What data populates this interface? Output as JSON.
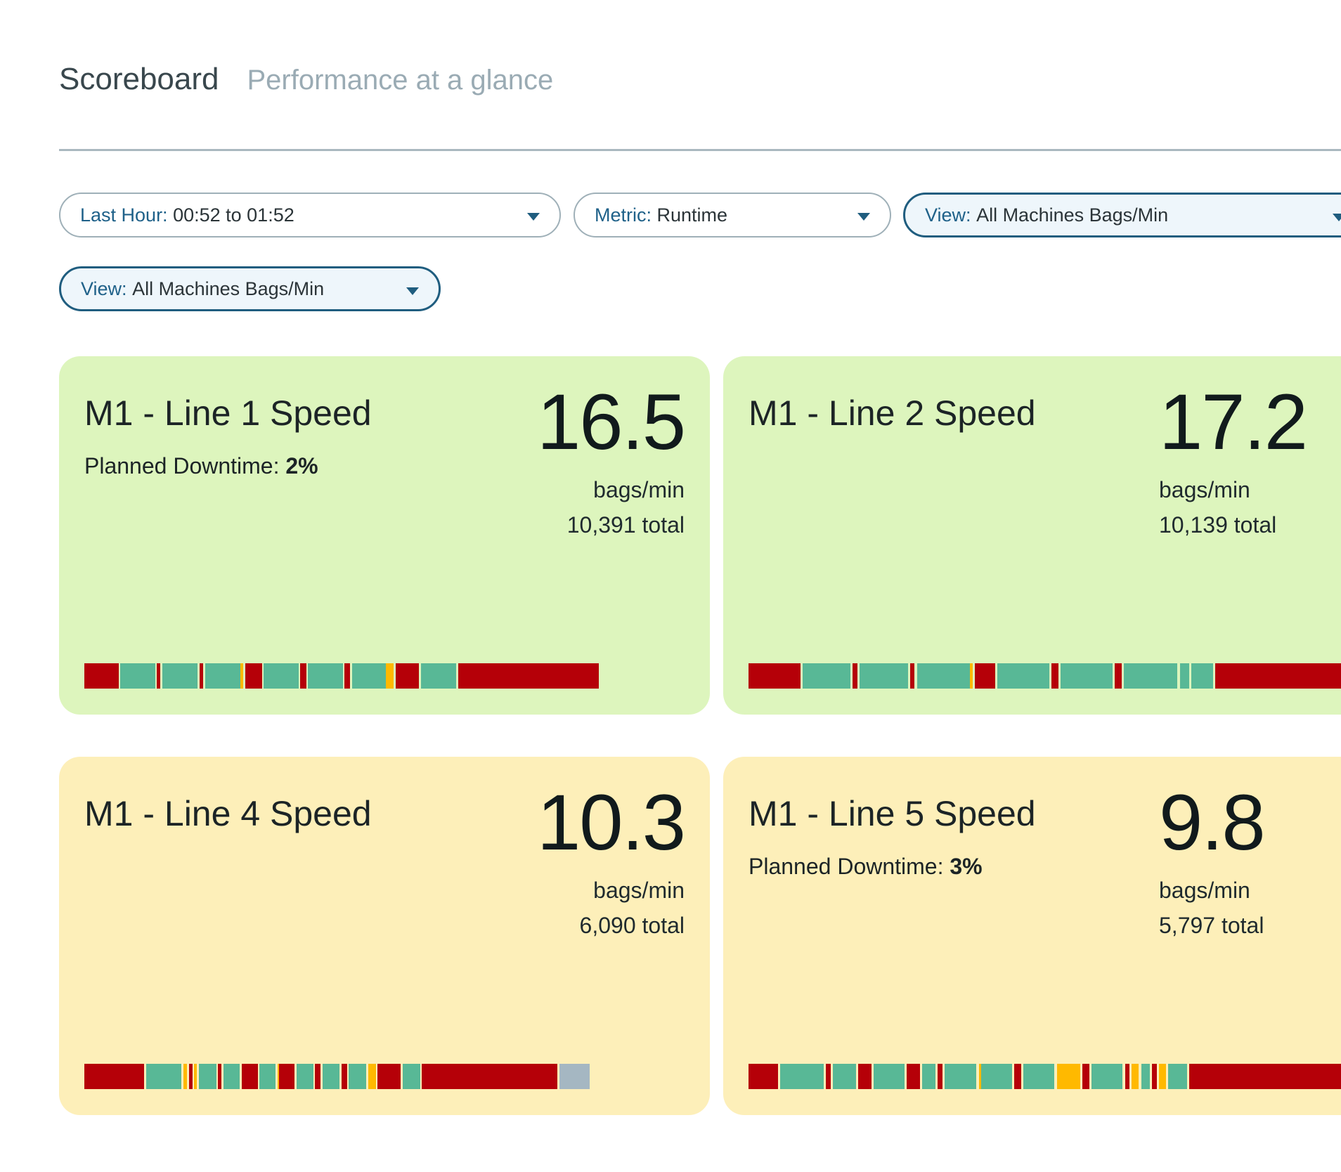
{
  "header": {
    "title": "Scoreboard",
    "subtitle": "Performance at a glance"
  },
  "filters": {
    "time": {
      "label": "Last Hour:",
      "value": "00:52 to 01:52"
    },
    "metric": {
      "label": "Metric:",
      "value": "Runtime"
    },
    "view1": {
      "label": "View:",
      "value": "All Machines Bags/Min"
    },
    "view2": {
      "label": "View:",
      "value": "All Machines Bags/Min"
    }
  },
  "colors": {
    "running": "#58b896",
    "down": "#b50008",
    "warning": "#ffb900",
    "offline": "#a5b7c2",
    "card_good": "#ddf5bd",
    "card_warn": "#fdefb9"
  },
  "cards": [
    {
      "title": "M1 - Line 1 Speed",
      "downtime_label": "Planned Downtime:",
      "downtime_value": "2%",
      "value": "16.5",
      "unit": "bags/min",
      "total": "10,391 total",
      "status": "good",
      "timeline": [
        [
          "down",
          5.7
        ],
        [
          "gap",
          0.3
        ],
        [
          "run",
          5.8
        ],
        [
          "gap",
          0.3
        ],
        [
          "down",
          0.6
        ],
        [
          "gap",
          0.3
        ],
        [
          "run",
          5.9
        ],
        [
          "gap",
          0.3
        ],
        [
          "down",
          0.6
        ],
        [
          "gap",
          0.3
        ],
        [
          "run",
          5.9
        ],
        [
          "warn",
          0.5
        ],
        [
          "gap",
          0.3
        ],
        [
          "down",
          2.8
        ],
        [
          "gap",
          0.3
        ],
        [
          "run",
          5.8
        ],
        [
          "gap",
          0.3
        ],
        [
          "down",
          1.0
        ],
        [
          "gap",
          0.3
        ],
        [
          "run",
          5.8
        ],
        [
          "gap",
          0.3
        ],
        [
          "down",
          0.9
        ],
        [
          "gap",
          0.3
        ],
        [
          "run",
          5.7
        ],
        [
          "warn",
          1.3
        ],
        [
          "gap",
          0.3
        ],
        [
          "down",
          3.9
        ],
        [
          "gap",
          0.3
        ],
        [
          "run",
          5.9
        ],
        [
          "gap",
          0.3
        ],
        [
          "down",
          23.4
        ]
      ]
    },
    {
      "title": "M1 - Line 2 Speed",
      "value": "17.2",
      "unit": "bags/min",
      "total": "10,139 total",
      "status": "good",
      "timeline": [
        [
          "down",
          6.7
        ],
        [
          "gap",
          0.3
        ],
        [
          "run",
          6.2
        ],
        [
          "gap",
          0.3
        ],
        [
          "down",
          0.6
        ],
        [
          "gap",
          0.3
        ],
        [
          "run",
          6.2
        ],
        [
          "gap",
          0.3
        ],
        [
          "down",
          0.6
        ],
        [
          "gap",
          0.3
        ],
        [
          "run",
          6.8
        ],
        [
          "warn",
          0.4
        ],
        [
          "gap",
          0.3
        ],
        [
          "down",
          2.6
        ],
        [
          "gap",
          0.3
        ],
        [
          "run",
          6.7
        ],
        [
          "gap",
          0.3
        ],
        [
          "down",
          0.9
        ],
        [
          "gap",
          0.3
        ],
        [
          "run",
          6.7
        ],
        [
          "gap",
          0.3
        ],
        [
          "down",
          0.9
        ],
        [
          "gap",
          0.3
        ],
        [
          "run",
          6.9
        ],
        [
          "gap",
          0.3
        ],
        [
          "run",
          1.2
        ],
        [
          "gap",
          0.3
        ],
        [
          "run",
          2.8
        ],
        [
          "gap",
          0.3
        ],
        [
          "down",
          36.0
        ]
      ]
    },
    {
      "title": "M1 - Line 4 Speed",
      "value": "10.3",
      "unit": "bags/min",
      "total": "6,090 total",
      "status": "warn",
      "timeline": [
        [
          "down",
          10.0
        ],
        [
          "gap",
          0.3
        ],
        [
          "run",
          5.9
        ],
        [
          "gap",
          0.3
        ],
        [
          "warn",
          0.6
        ],
        [
          "gap",
          0.3
        ],
        [
          "down",
          0.6
        ],
        [
          "gap",
          0.3
        ],
        [
          "warn",
          0.5
        ],
        [
          "gap",
          0.3
        ],
        [
          "run",
          2.9
        ],
        [
          "gap",
          0.3
        ],
        [
          "down",
          0.6
        ],
        [
          "gap",
          0.3
        ],
        [
          "run",
          2.7
        ],
        [
          "gap",
          0.3
        ],
        [
          "down",
          2.7
        ],
        [
          "gap",
          0.3
        ],
        [
          "run",
          2.7
        ],
        [
          "gap",
          0.3
        ],
        [
          "warn",
          0.3
        ],
        [
          "down",
          2.6
        ],
        [
          "gap",
          0.3
        ],
        [
          "run",
          2.8
        ],
        [
          "gap",
          0.3
        ],
        [
          "down",
          0.9
        ],
        [
          "gap",
          0.3
        ],
        [
          "run",
          2.9
        ],
        [
          "gap",
          0.3
        ],
        [
          "down",
          0.9
        ],
        [
          "gap",
          0.3
        ],
        [
          "run",
          2.9
        ],
        [
          "gap",
          0.3
        ],
        [
          "warn",
          1.3
        ],
        [
          "gap",
          0.3
        ],
        [
          "down",
          3.9
        ],
        [
          "gap",
          0.3
        ],
        [
          "run",
          2.9
        ],
        [
          "gap",
          0.3
        ],
        [
          "down",
          22.6
        ],
        [
          "gap",
          0.3
        ],
        [
          "off",
          5.0
        ]
      ]
    },
    {
      "title": "M1 - Line 5 Speed",
      "downtime_label": "Planned Downtime:",
      "downtime_value": "3%",
      "value": "9.8",
      "unit": "bags/min",
      "total": "5,797 total",
      "status": "warn",
      "timeline": [
        [
          "down",
          3.8
        ],
        [
          "gap",
          0.3
        ],
        [
          "run",
          5.6
        ],
        [
          "gap",
          0.3
        ],
        [
          "down",
          0.6
        ],
        [
          "gap",
          0.3
        ],
        [
          "run",
          3.0
        ],
        [
          "gap",
          0.3
        ],
        [
          "down",
          1.7
        ],
        [
          "gap",
          0.3
        ],
        [
          "run",
          4.0
        ],
        [
          "gap",
          0.3
        ],
        [
          "down",
          1.7
        ],
        [
          "gap",
          0.3
        ],
        [
          "run",
          1.7
        ],
        [
          "gap",
          0.3
        ],
        [
          "down",
          0.6
        ],
        [
          "gap",
          0.3
        ],
        [
          "run",
          4.1
        ],
        [
          "gap",
          0.3
        ],
        [
          "warn",
          0.3
        ],
        [
          "run",
          4.0
        ],
        [
          "gap",
          0.3
        ],
        [
          "down",
          0.9
        ],
        [
          "gap",
          0.3
        ],
        [
          "run",
          4.0
        ],
        [
          "gap",
          0.3
        ],
        [
          "warn",
          3.0
        ],
        [
          "gap",
          0.3
        ],
        [
          "down",
          0.9
        ],
        [
          "gap",
          0.3
        ],
        [
          "run",
          4.0
        ],
        [
          "gap",
          0.3
        ],
        [
          "down",
          0.6
        ],
        [
          "gap",
          0.3
        ],
        [
          "warn",
          0.9
        ],
        [
          "gap",
          0.3
        ],
        [
          "run",
          1.1
        ],
        [
          "gap",
          0.3
        ],
        [
          "down",
          0.6
        ],
        [
          "gap",
          0.3
        ],
        [
          "warn",
          0.9
        ],
        [
          "gap",
          0.3
        ],
        [
          "run",
          2.4
        ],
        [
          "gap",
          0.3
        ],
        [
          "down",
          37.5
        ]
      ]
    }
  ]
}
